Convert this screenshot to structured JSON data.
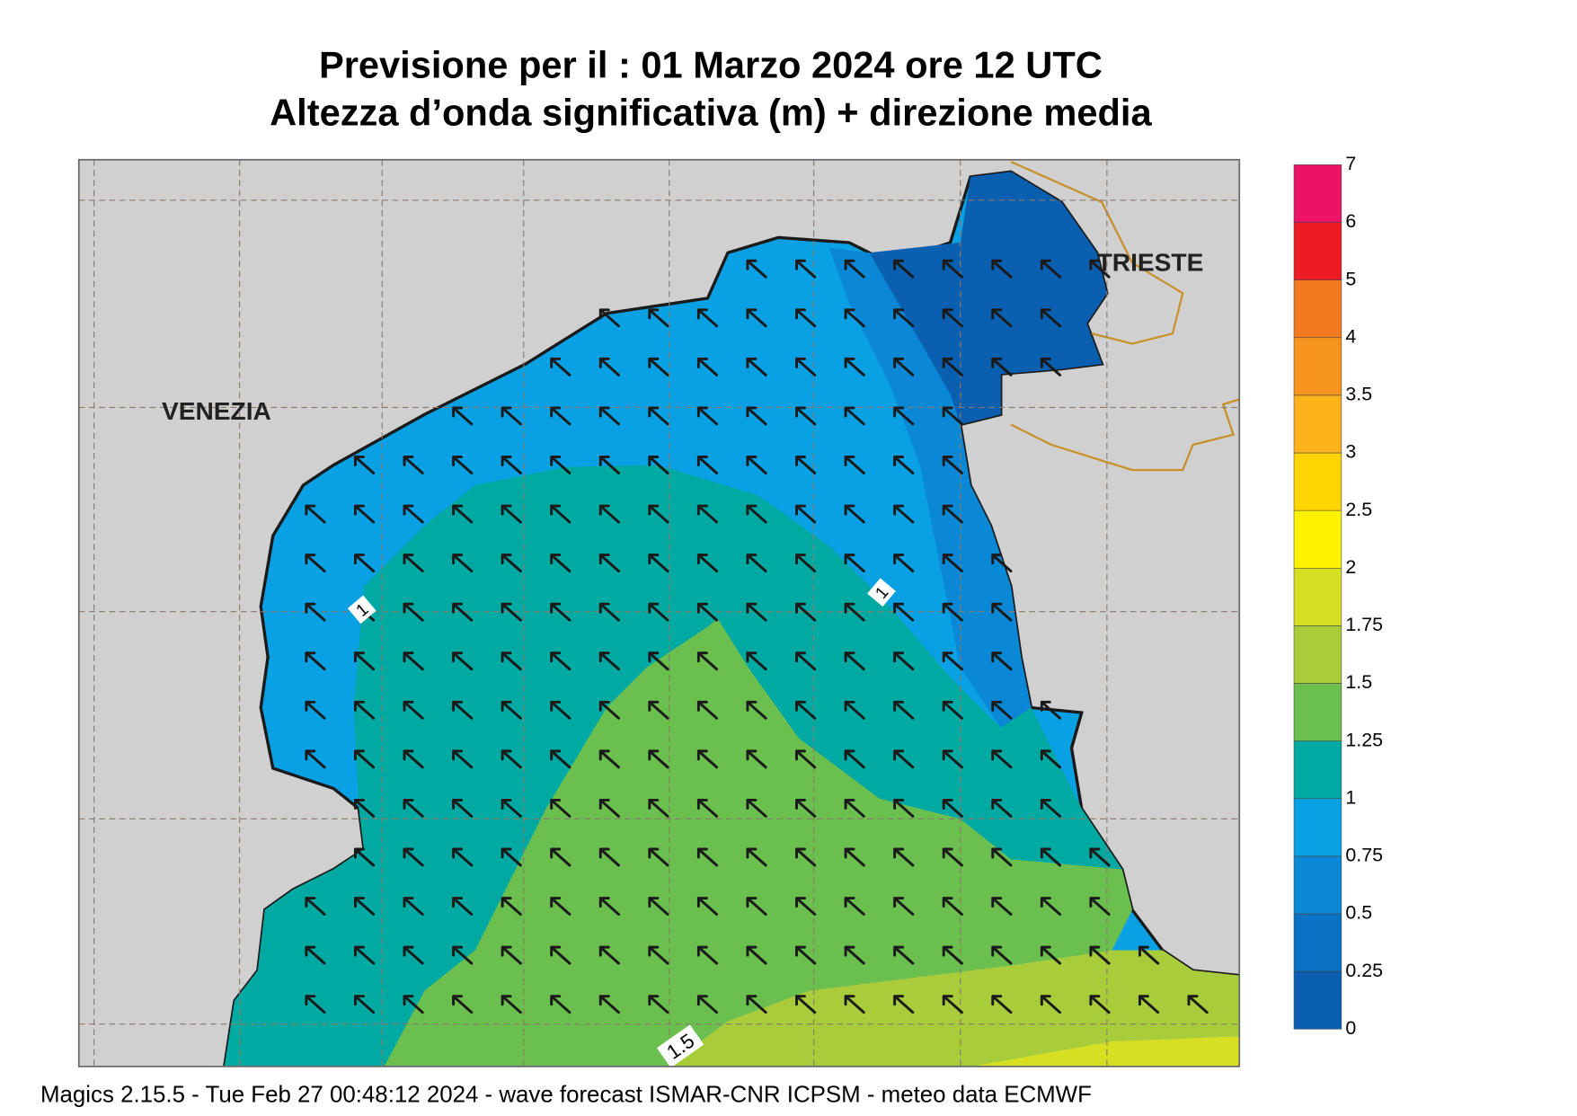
{
  "header": {
    "title_line1": "Previsione per il  :  01   Marzo   2024   ore 12 UTC",
    "title_line2": "Altezza d’onda significativa (m) + direzione media"
  },
  "map": {
    "labels": [
      "VENEZIA",
      "TRIESTE"
    ],
    "contour_labels": [
      "1",
      "1",
      "1.5"
    ]
  },
  "colorbar": {
    "ticks": [
      0,
      0.25,
      0.5,
      0.75,
      1,
      1.25,
      1.5,
      1.75,
      2,
      2.5,
      3,
      3.5,
      4,
      5,
      6,
      7
    ],
    "colors": [
      "#0a5fb0",
      "#0a72c4",
      "#0a88d6",
      "#0aa0e4",
      "#00aaa2",
      "#6abf4e",
      "#a8cc3a",
      "#d6df22",
      "#fff200",
      "#ffd400",
      "#fcb21a",
      "#f7941d",
      "#f47a22",
      "#ed1c24",
      "#ec1267"
    ]
  },
  "footer": {
    "text": "Magics 2.15.5 - Tue Feb 27 00:48:12 2024 - wave forecast  ISMAR-CNR  ICPSM - meteo data   ECMWF"
  }
}
